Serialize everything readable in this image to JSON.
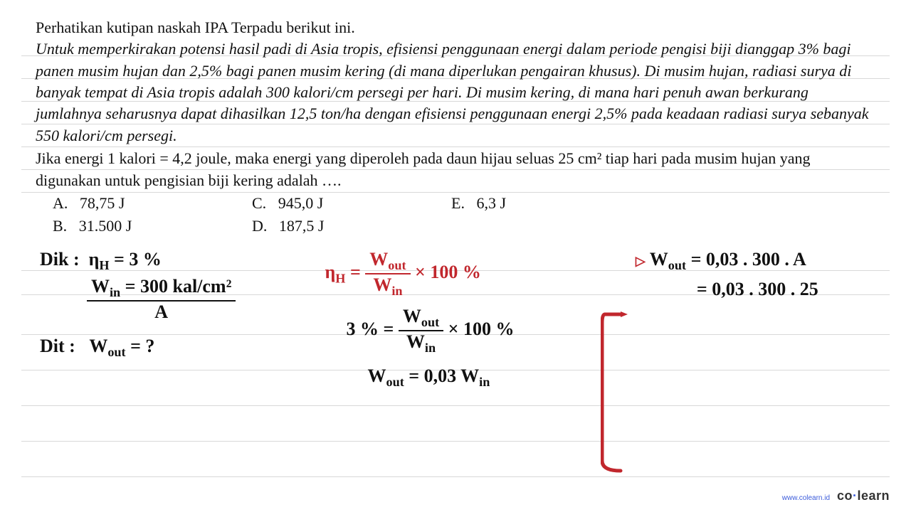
{
  "ruled_line_positions": [
    78,
    110,
    142,
    174,
    206,
    238,
    270,
    380,
    414,
    470,
    520,
    570,
    620,
    670
  ],
  "text": {
    "heading": "Perhatikan kutipan naskah IPA Terpadu berikut ini.",
    "passage": "Untuk memperkirakan potensi hasil padi di Asia tropis, efisiensi penggunaan energi dalam periode pengisi biji dianggap 3% bagi panen musim hujan dan 2,5% bagi panen musim kering (di mana diperlukan pengairan khusus). Di musim hujan, radiasi surya di banyak tempat di Asia tropis adalah 300 kalori/cm persegi per hari. Di musim kering, di mana hari penuh awan berkurang jumlahnya seharusnya dapat dihasilkan 12,5 ton/ha dengan efisiensi penggunaan energi 2,5% pada keadaan radiasi surya sebanyak 550 kalori/cm persegi.",
    "question": "Jika energi 1 kalori = 4,2 joule, maka energi yang diperoleh pada daun hijau seluas 25 cm² tiap hari pada musim hujan yang digunakan untuk pengisian biji kering adalah ….",
    "options": {
      "A": "78,75 J",
      "B": "31.500 J",
      "C": "945,0 J",
      "D": "187,5 J",
      "E": "6,3 J"
    }
  },
  "handwriting": {
    "dik_label": "Dik :",
    "eta_h": "η",
    "eta_h_sub": "H",
    "eta_h_val": " = 3 %",
    "win_num": "W",
    "win_sub": "in",
    "win_val": " = 300 kal/cm²",
    "win_den": "A",
    "dit_label": "Dit :",
    "dit_val": "W",
    "dit_sub": "out",
    "dit_q": " = ?",
    "red": {
      "eta": "η",
      "eta_sub": "H",
      "eq": " = ",
      "wout": "W",
      "wout_sub": "out",
      "times100": " × 100 %",
      "win": "W",
      "win_sub": "in",
      "line2_lhs": "3 % = ",
      "line3_lhs": "W",
      "line3_sub": "out",
      "line3_rhs": " = 0,03 W",
      "line3_rhs_sub": "in"
    },
    "black_right": {
      "arrow": "▷",
      "l1": " W",
      "l1_sub": "out",
      "l1_rhs": " = 0,03 . 300 . A",
      "l2": "= 0,03 . 300 . 25"
    }
  },
  "colors": {
    "ink_black": "#111111",
    "ink_red": "#c1272d",
    "rule": "#d8d8d8",
    "logo_blue": "#3b5bdb"
  },
  "footer": {
    "url": "www.colearn.id",
    "brand_prefix": "co",
    "brand_dot": "·",
    "brand_suffix": "learn"
  }
}
